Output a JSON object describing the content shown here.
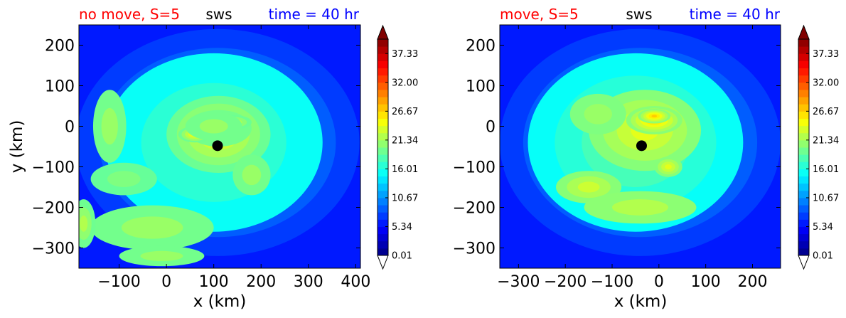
{
  "chart_data": [
    {
      "type": "heatmap",
      "title_left": "no move, S=5",
      "title_center": "sws",
      "title_right": "time = 40 hr",
      "title_left_color": "#ff0000",
      "title_right_color": "#0000ff",
      "xlabel": "x (km)",
      "ylabel": "y (km)",
      "xlim": [
        -185,
        410
      ],
      "ylim": [
        -350,
        250
      ],
      "xticks": [
        "-100",
        "0",
        "100",
        "200",
        "300",
        "400"
      ],
      "xtick_values": [
        -100,
        0,
        100,
        200,
        300,
        400
      ],
      "yticks": [
        "200",
        "100",
        "0",
        "-100",
        "-200",
        "-300"
      ],
      "ytick_values": [
        200,
        100,
        0,
        -100,
        -200,
        -300
      ],
      "center_marker": {
        "x": 108,
        "y": -48
      },
      "field": {
        "background": 6,
        "blobs": [
          {
            "x": 108,
            "y": -40,
            "rx": 300,
            "ry": 280,
            "v": 8
          },
          {
            "x": 100,
            "y": -40,
            "rx": 230,
            "ry": 220,
            "v": 4
          },
          {
            "x": 110,
            "y": -20,
            "rx": 110,
            "ry": 95,
            "v": 6
          },
          {
            "x": 110,
            "y": -5,
            "rx": 70,
            "ry": 45,
            "v": 3
          },
          {
            "x": 60,
            "y": -20,
            "rx": 35,
            "ry": 20,
            "v": 7
          },
          {
            "x": 140,
            "y": 10,
            "rx": 40,
            "ry": 18,
            "v": 5
          },
          {
            "x": 100,
            "y": 0,
            "rx": 60,
            "ry": 35,
            "v": 3
          },
          {
            "x": -120,
            "y": 0,
            "rx": 35,
            "ry": 90,
            "v": 3
          },
          {
            "x": -90,
            "y": -130,
            "rx": 70,
            "ry": 40,
            "v": 2
          },
          {
            "x": -30,
            "y": -250,
            "rx": 130,
            "ry": 55,
            "v": 3
          },
          {
            "x": -10,
            "y": -320,
            "rx": 90,
            "ry": 25,
            "v": 3
          },
          {
            "x": -175,
            "y": -240,
            "rx": 25,
            "ry": 60,
            "v": 4
          },
          {
            "x": 180,
            "y": -120,
            "rx": 40,
            "ry": 50,
            "v": 3
          }
        ]
      },
      "colorbar": {
        "vmin": 0.01,
        "vmax": 40.0,
        "ticks": [
          "0.01",
          "5.34",
          "10.67",
          "16.01",
          "21.34",
          "26.67",
          "32.00",
          "37.33"
        ],
        "tick_values": [
          0.01,
          5.34,
          10.67,
          16.01,
          21.34,
          26.67,
          32.0,
          37.33
        ]
      }
    },
    {
      "type": "heatmap",
      "title_left": "move, S=5",
      "title_center": "sws",
      "title_right": "time = 40 hr",
      "title_left_color": "#ff0000",
      "title_right_color": "#0000ff",
      "xlabel": "x (km)",
      "ylabel": "",
      "xlim": [
        -340,
        260
      ],
      "ylim": [
        -350,
        250
      ],
      "xticks": [
        "-300",
        "-200",
        "-100",
        "0",
        "100",
        "200"
      ],
      "xtick_values": [
        -300,
        -200,
        -100,
        0,
        100,
        200
      ],
      "yticks": [
        "200",
        "100",
        "0",
        "-100",
        "-200",
        "-300"
      ],
      "ytick_values": [
        200,
        100,
        0,
        -100,
        -200,
        -300
      ],
      "center_marker": {
        "x": -37,
        "y": -48
      },
      "field": {
        "background": 6,
        "blobs": [
          {
            "x": -40,
            "y": -40,
            "rx": 300,
            "ry": 280,
            "v": 8
          },
          {
            "x": -50,
            "y": -40,
            "rx": 230,
            "ry": 220,
            "v": 5
          },
          {
            "x": -30,
            "y": -10,
            "rx": 120,
            "ry": 100,
            "v": 5
          },
          {
            "x": -10,
            "y": 15,
            "rx": 60,
            "ry": 35,
            "v": 8
          },
          {
            "x": -10,
            "y": 25,
            "rx": 35,
            "ry": 18,
            "v": 8
          },
          {
            "x": -150,
            "y": -150,
            "rx": 70,
            "ry": 40,
            "v": 4
          },
          {
            "x": 20,
            "y": -100,
            "rx": 30,
            "ry": 25,
            "v": 5
          },
          {
            "x": -40,
            "y": -200,
            "rx": 120,
            "ry": 40,
            "v": 3
          },
          {
            "x": -130,
            "y": 30,
            "rx": 60,
            "ry": 50,
            "v": 2
          }
        ]
      },
      "colorbar": {
        "vmin": 0.01,
        "vmax": 40.0,
        "ticks": [
          "0.01",
          "5.34",
          "10.67",
          "16.01",
          "21.34",
          "26.67",
          "32.00",
          "37.33"
        ],
        "tick_values": [
          0.01,
          5.34,
          10.67,
          16.01,
          21.34,
          26.67,
          32.0,
          37.33
        ]
      }
    }
  ]
}
